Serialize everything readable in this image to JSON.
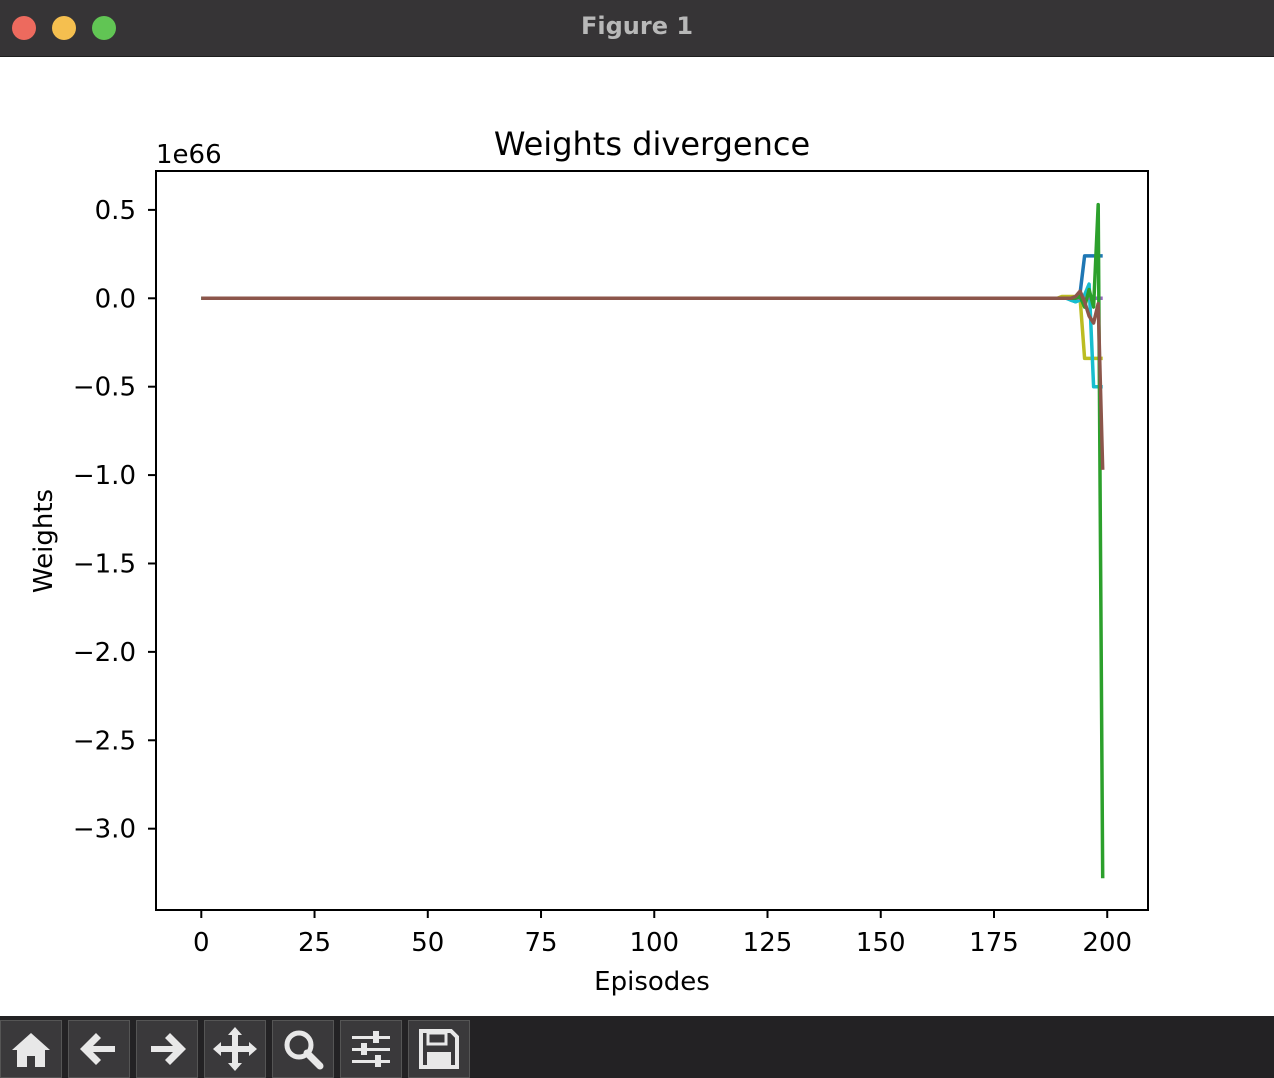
{
  "window": {
    "title": "Figure 1"
  },
  "toolbar": {
    "buttons": [
      {
        "name": "home-icon"
      },
      {
        "name": "back-arrow-icon"
      },
      {
        "name": "forward-arrow-icon"
      },
      {
        "name": "pan-icon"
      },
      {
        "name": "zoom-icon"
      },
      {
        "name": "configure-subplots-icon"
      },
      {
        "name": "save-icon"
      }
    ]
  },
  "chart_data": {
    "type": "line",
    "title": "Weights divergence",
    "xlabel": "Episodes",
    "ylabel": "Weights",
    "offset_text": "1e66",
    "xlim": [
      -10,
      209
    ],
    "ylim": [
      -3.46,
      0.72
    ],
    "xticks": [
      0,
      25,
      50,
      75,
      100,
      125,
      150,
      175,
      200
    ],
    "yticks": [
      0.5,
      0.0,
      -0.5,
      -1.0,
      -1.5,
      -2.0,
      -2.5,
      -3.0
    ],
    "ytick_labels": [
      "0.5",
      "0.0",
      "−0.5",
      "−1.0",
      "−1.5",
      "−2.0",
      "−2.5",
      "−3.0"
    ],
    "xtick_labels": [
      "0",
      "25",
      "50",
      "75",
      "100",
      "125",
      "150",
      "175",
      "200"
    ],
    "grid": false,
    "series": [
      {
        "color": "#1f77b4",
        "x": [
          0,
          190,
          191,
          192,
          193,
          194,
          195,
          196,
          197,
          198,
          199
        ],
        "y": [
          0,
          0,
          0,
          -0.01,
          -0.02,
          0.03,
          0.24,
          0.24,
          0.24,
          0.24,
          0.24
        ]
      },
      {
        "color": "#bcbd22",
        "x": [
          0,
          189,
          190,
          191,
          192,
          193,
          194,
          195,
          196,
          197,
          198,
          199
        ],
        "y": [
          0,
          0,
          0.01,
          0.01,
          0.01,
          0.01,
          0,
          -0.34,
          -0.34,
          -0.34,
          -0.34,
          -0.34
        ]
      },
      {
        "color": "#17becf",
        "x": [
          0,
          191,
          192,
          193,
          194,
          195,
          196,
          197,
          198,
          199
        ],
        "y": [
          0,
          0,
          -0.01,
          -0.02,
          -0.01,
          0.02,
          0.08,
          -0.5,
          -0.5,
          -0.5
        ]
      },
      {
        "color": "#9467bd",
        "x": [
          0,
          199
        ],
        "y": [
          0,
          0
        ]
      },
      {
        "color": "#2ca02c",
        "x": [
          0,
          193,
          194,
          195,
          196,
          197,
          198,
          199
        ],
        "y": [
          0,
          0,
          0.01,
          -0.05,
          0.05,
          -0.05,
          0.53,
          -3.28
        ]
      },
      {
        "color": "#8c564b",
        "x": [
          0,
          192,
          193,
          194,
          195,
          196,
          197,
          198,
          199
        ],
        "y": [
          0,
          0,
          0.01,
          0.04,
          -0.02,
          -0.1,
          -0.14,
          -0.03,
          -0.97
        ]
      }
    ]
  }
}
